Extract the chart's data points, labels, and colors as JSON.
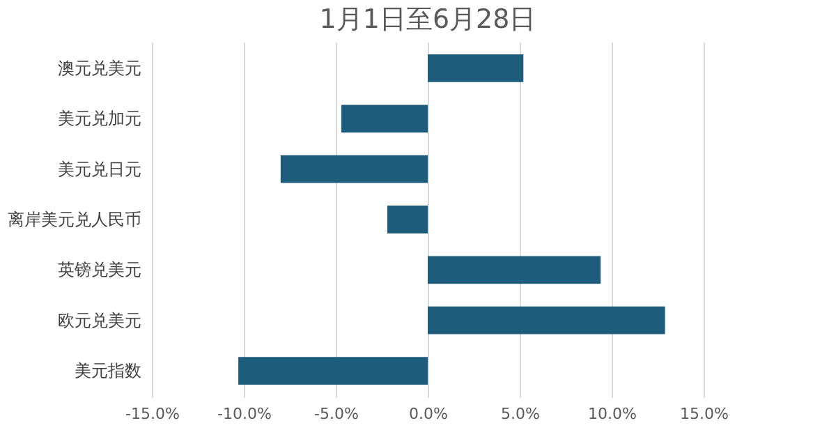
{
  "chart_data": {
    "type": "bar",
    "orientation": "horizontal",
    "title": "1月1日至6月28日",
    "categories": [
      "澳元兑美元",
      "美元兑加元",
      "美元兑日元",
      "离岸美元兑人民币",
      "英镑兑美元",
      "欧元兑美元",
      "美元指数"
    ],
    "values": [
      5.2,
      -4.7,
      -8.0,
      -2.2,
      9.4,
      12.9,
      -10.3
    ],
    "color": "#1d5d7b",
    "xlim": [
      -15,
      15
    ],
    "xticks": [
      {
        "value": -15,
        "label": "-15.0%"
      },
      {
        "value": -10,
        "label": "-10.0%"
      },
      {
        "value": -5,
        "label": "-5.0%"
      },
      {
        "value": 0,
        "label": "0.0%"
      },
      {
        "value": 5,
        "label": "5.0%"
      },
      {
        "value": 10,
        "label": "10.0%"
      },
      {
        "value": 15,
        "label": "15.0%"
      }
    ],
    "grid": "x"
  }
}
